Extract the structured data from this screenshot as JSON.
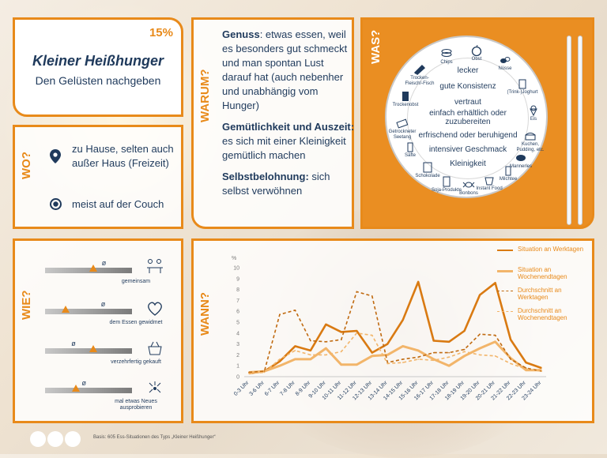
{
  "title_card": {
    "percent": "15%",
    "title": "Kleiner Heißhunger",
    "subtitle": "Den Gelüsten nachgeben"
  },
  "wo": {
    "label": "WO?",
    "rows": [
      {
        "icon": "location-pin-icon",
        "text": "zu Hause, selten auch außer Haus (Freizeit)"
      },
      {
        "icon": "radio-target-icon",
        "text": "meist auf der Couch"
      }
    ]
  },
  "warum": {
    "label": "WARUM?",
    "items": [
      {
        "bold": "Genuss",
        "text": ": etwas essen, weil es besonders gut schmeckt und man spontan Lust darauf hat (auch nebenher und unabhängig vom Hunger)"
      },
      {
        "bold": "Gemütlichkeit und Auszeit:",
        "text": " es sich mit einer Kleinigkeit gemütlich machen"
      },
      {
        "bold": "Selbstbelohnung:",
        "text": " sich selbst verwöhnen"
      }
    ]
  },
  "was": {
    "label": "WAS?",
    "center_items": [
      "lecker",
      "gute Konsistenz",
      "vertraut",
      "einfach erhältlich oder zuzubereiten",
      "erfrischend oder beruhigend",
      "intensiver Geschmack",
      "Kleinigkeit"
    ],
    "foods": [
      "Trocken-Fleisch/-Fisch",
      "Chips",
      "Obst",
      "Nüsse",
      "(Trink-)Joghurt",
      "Trockenobst",
      "Eis",
      "Getrockneter Seetang",
      "Kuchen, Pudding, etc.",
      "Säfte",
      "Mannerles",
      "Schokolade",
      "Soja-Produkte",
      "Bonbons",
      "Instant Food",
      "Milchtee"
    ]
  },
  "wie": {
    "label": "WIE?",
    "rows": [
      {
        "label": "gemeinsam",
        "icon": "people-table-icon",
        "mark": 0.55,
        "avg": 0.68
      },
      {
        "label": "dem Essen gewidmet",
        "icon": "heart-icon",
        "mark": 0.24,
        "avg": 0.67
      },
      {
        "label": "verzehrfertig gekauft",
        "icon": "takeaway-box-icon",
        "mark": 0.55,
        "avg": 0.33
      },
      {
        "label": "mal etwas Neues ausprobieren",
        "icon": "sparkle-new-icon",
        "mark": 0.35,
        "avg": 0.45
      }
    ],
    "avg_symbol": "ø"
  },
  "wann": {
    "label": "WANN?"
  },
  "chart_data": {
    "type": "line",
    "ylabel": "%",
    "ylim": [
      0,
      10
    ],
    "yticks": [
      0,
      1,
      2,
      3,
      4,
      5,
      6,
      7,
      8,
      9,
      10
    ],
    "categories": [
      "0-3 Uhr",
      "3-6 Uhr",
      "6-7 Uhr",
      "7-8 Uhr",
      "8-9 Uhr",
      "9-10 Uhr",
      "10-11 Uhr",
      "11-12 Uhr",
      "12-13 Uhr",
      "13-14 Uhr",
      "14-15 Uhr",
      "15-16 Uhr",
      "16-17 Uhr",
      "17-18 Uhr",
      "18-19 Uhr",
      "19-20 Uhr",
      "20-21 Uhr",
      "21-22 Uhr",
      "22-23 Uhr",
      "23-24 Uhr"
    ],
    "series": [
      {
        "name": "Situation an Werktagen",
        "style": "solid-dark",
        "values": [
          0.3,
          0.5,
          1.4,
          2.8,
          2.4,
          4.8,
          4.1,
          4.2,
          2.2,
          3.0,
          5.2,
          8.7,
          3.3,
          3.2,
          4.2,
          7.5,
          8.6,
          3.4,
          1.3,
          0.8
        ]
      },
      {
        "name": "Situation an Wochenendtagen",
        "style": "solid-light",
        "values": [
          0.4,
          0.5,
          1.0,
          1.6,
          1.6,
          2.6,
          1.1,
          1.1,
          1.9,
          2.0,
          2.8,
          2.4,
          1.6,
          1.0,
          1.9,
          2.6,
          3.2,
          1.7,
          0.6,
          0.6
        ]
      },
      {
        "name": "Durchschnitt an Werktagen",
        "style": "dashed-dark",
        "values": [
          0.4,
          0.5,
          5.7,
          6.1,
          3.3,
          3.2,
          3.4,
          7.8,
          7.4,
          1.3,
          1.6,
          1.8,
          2.2,
          2.2,
          2.5,
          3.9,
          3.8,
          1.6,
          0.8,
          0.5
        ]
      },
      {
        "name": "Durchschnitt an Wochenendtagen",
        "style": "dashed-light",
        "values": [
          0.3,
          0.4,
          1.6,
          2.4,
          2.0,
          2.0,
          2.3,
          4.0,
          3.8,
          1.2,
          1.3,
          1.6,
          1.5,
          1.8,
          2.3,
          2.0,
          1.9,
          1.2,
          0.7,
          0.5
        ]
      }
    ]
  },
  "colors": {
    "accent": "#e88a1a",
    "dark_orange": "#d97a12",
    "light_orange": "#f2b56a",
    "navy": "#1f3a5c"
  },
  "footer": {
    "note": "Basis: 605 Ess-Situationen des Typs „Kleiner Heißhunger“"
  }
}
